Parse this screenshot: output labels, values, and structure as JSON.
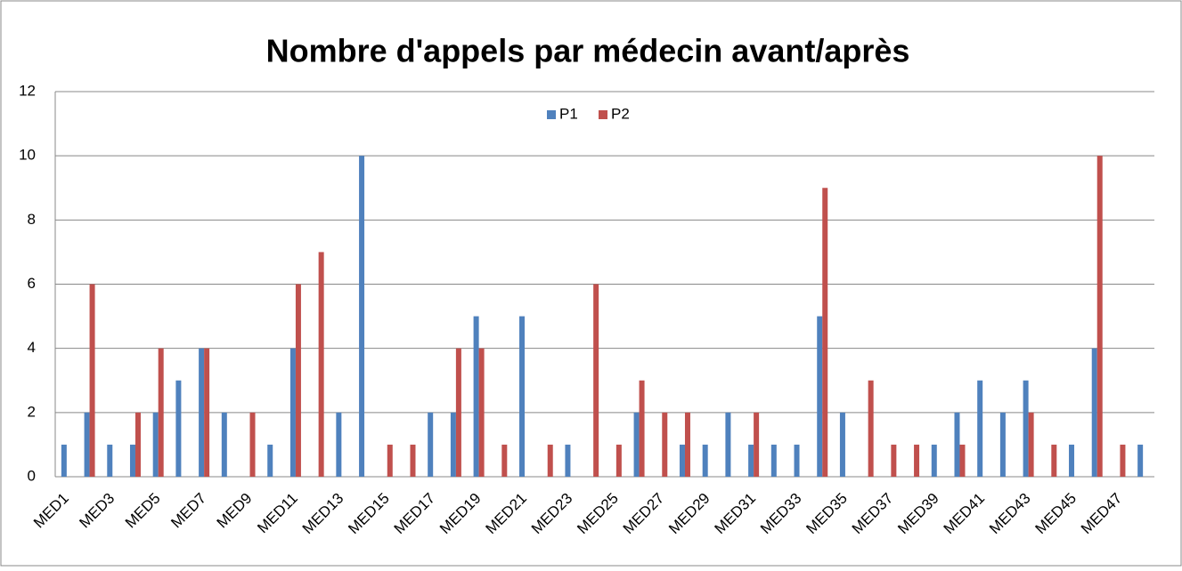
{
  "chart_data": {
    "type": "bar",
    "title": "Nombre d'appels par médecin avant/après",
    "categories": [
      "MED1",
      null,
      "MED3",
      null,
      "MED5",
      null,
      "MED7",
      null,
      "MED9",
      null,
      "MED11",
      null,
      "MED13",
      null,
      "MED15",
      null,
      "MED17",
      null,
      "MED19",
      null,
      "MED21",
      null,
      "MED23",
      null,
      "MED25",
      null,
      "MED27",
      null,
      "MED29",
      null,
      "MED31",
      null,
      "MED33",
      null,
      "MED35",
      null,
      "MED37",
      null,
      "MED39",
      null,
      "MED41",
      null,
      "MED43",
      null,
      "MED45",
      null,
      "MED47",
      null
    ],
    "series": [
      {
        "name": "P1",
        "color": "#4f81bd",
        "values": [
          1,
          2,
          1,
          1,
          2,
          3,
          4,
          2,
          0,
          1,
          4,
          0,
          2,
          10,
          0,
          0,
          2,
          2,
          5,
          0,
          5,
          0,
          1,
          0,
          0,
          2,
          0,
          1,
          1,
          2,
          1,
          1,
          1,
          5,
          2,
          0,
          0,
          0,
          1,
          2,
          3,
          2,
          3,
          0,
          1,
          4,
          0,
          1
        ]
      },
      {
        "name": "P2",
        "color": "#c0504d",
        "values": [
          0,
          6,
          0,
          2,
          4,
          0,
          4,
          0,
          2,
          0,
          6,
          7,
          0,
          0,
          1,
          1,
          0,
          4,
          4,
          1,
          0,
          1,
          0,
          6,
          1,
          3,
          2,
          2,
          0,
          0,
          2,
          0,
          0,
          9,
          0,
          3,
          1,
          1,
          0,
          1,
          0,
          0,
          2,
          1,
          0,
          10,
          1,
          0
        ]
      }
    ],
    "ylim": [
      0,
      12
    ],
    "yticks": [
      0,
      2,
      4,
      6,
      8,
      10,
      12
    ],
    "grid": true,
    "legend": "top"
  }
}
